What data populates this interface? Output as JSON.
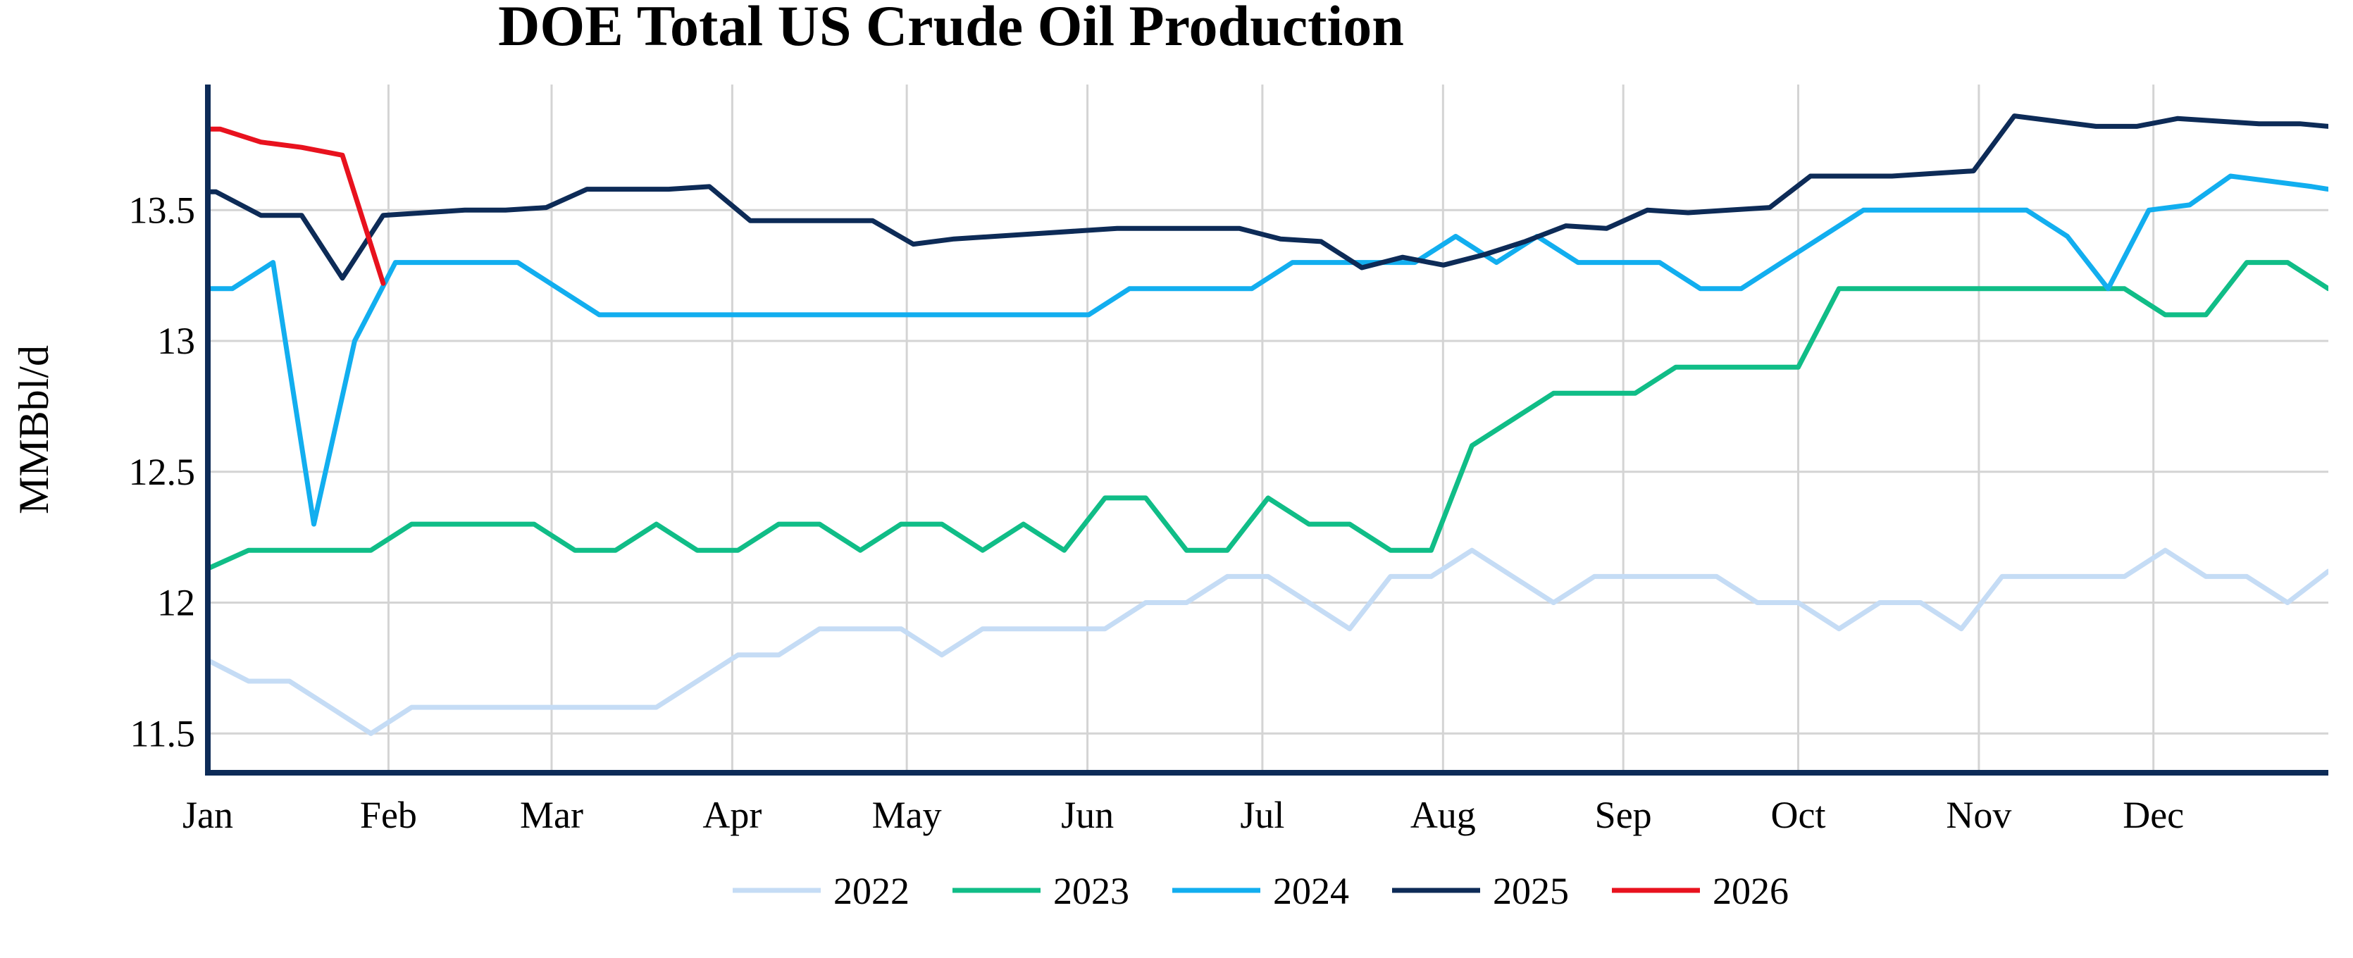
{
  "chart_data": {
    "type": "line",
    "title": "DOE Total US Crude Oil Production",
    "xlabel": "",
    "ylabel": "MMBbl/d",
    "xlim": [
      0,
      52
    ],
    "ylim": [
      11.35,
      13.98
    ],
    "yticks": [
      11.5,
      12,
      12.5,
      13,
      13.5
    ],
    "ytick_labels": [
      "11.5",
      "12",
      "12.5",
      "13",
      "13.5"
    ],
    "xticks": [
      0,
      4.43,
      8.43,
      12.86,
      17.14,
      21.57,
      25.86,
      30.29,
      34.71,
      39.0,
      43.43,
      47.71
    ],
    "xtick_labels": [
      "Jan",
      "Feb",
      "Mar",
      "Apr",
      "May",
      "Jun",
      "Jul",
      "Aug",
      "Sep",
      "Oct",
      "Nov",
      "Dec"
    ],
    "grid": true,
    "legend": "bottom",
    "series": [
      {
        "name": "2022",
        "color": "#c5dcf5",
        "values": [
          [
            0,
            11.78
          ],
          [
            1,
            11.7
          ],
          [
            2,
            11.7
          ],
          [
            3,
            11.6
          ],
          [
            4,
            11.5
          ],
          [
            5,
            11.6
          ],
          [
            6,
            11.6
          ],
          [
            7,
            11.6
          ],
          [
            8,
            11.6
          ],
          [
            9,
            11.6
          ],
          [
            10,
            11.6
          ],
          [
            11,
            11.6
          ],
          [
            12,
            11.7
          ],
          [
            13,
            11.8
          ],
          [
            14,
            11.8
          ],
          [
            15,
            11.9
          ],
          [
            16,
            11.9
          ],
          [
            17,
            11.9
          ],
          [
            18,
            11.8
          ],
          [
            19,
            11.9
          ],
          [
            20,
            11.9
          ],
          [
            21,
            11.9
          ],
          [
            22,
            11.9
          ],
          [
            23,
            12.0
          ],
          [
            24,
            12.0
          ],
          [
            25,
            12.1
          ],
          [
            26,
            12.1
          ],
          [
            27,
            12.0
          ],
          [
            28,
            11.9
          ],
          [
            29,
            12.1
          ],
          [
            30,
            12.1
          ],
          [
            31,
            12.2
          ],
          [
            32,
            12.1
          ],
          [
            33,
            12.0
          ],
          [
            34,
            12.1
          ],
          [
            35,
            12.1
          ],
          [
            36,
            12.1
          ],
          [
            37,
            12.1
          ],
          [
            38,
            12.0
          ],
          [
            39,
            12.0
          ],
          [
            40,
            11.9
          ],
          [
            41,
            12.0
          ],
          [
            42,
            12.0
          ],
          [
            43,
            11.9
          ],
          [
            44,
            12.1
          ],
          [
            45,
            12.1
          ],
          [
            46,
            12.1
          ],
          [
            47,
            12.1
          ],
          [
            48,
            12.2
          ],
          [
            49,
            12.1
          ],
          [
            50,
            12.1
          ],
          [
            51,
            12.0
          ],
          [
            52,
            12.12
          ]
        ]
      },
      {
        "name": "2023",
        "color": "#10bd87",
        "values": [
          [
            0,
            12.13
          ],
          [
            1,
            12.2
          ],
          [
            2,
            12.2
          ],
          [
            3,
            12.2
          ],
          [
            4,
            12.2
          ],
          [
            5,
            12.3
          ],
          [
            6,
            12.3
          ],
          [
            7,
            12.3
          ],
          [
            8,
            12.3
          ],
          [
            9,
            12.2
          ],
          [
            10,
            12.2
          ],
          [
            11,
            12.3
          ],
          [
            12,
            12.2
          ],
          [
            13,
            12.2
          ],
          [
            14,
            12.3
          ],
          [
            15,
            12.3
          ],
          [
            16,
            12.2
          ],
          [
            17,
            12.3
          ],
          [
            18,
            12.3
          ],
          [
            19,
            12.2
          ],
          [
            20,
            12.3
          ],
          [
            21,
            12.2
          ],
          [
            22,
            12.4
          ],
          [
            23,
            12.4
          ],
          [
            24,
            12.2
          ],
          [
            25,
            12.2
          ],
          [
            26,
            12.4
          ],
          [
            27,
            12.3
          ],
          [
            28,
            12.3
          ],
          [
            29,
            12.2
          ],
          [
            30,
            12.2
          ],
          [
            31,
            12.6
          ],
          [
            32,
            12.7
          ],
          [
            33,
            12.8
          ],
          [
            34,
            12.8
          ],
          [
            35,
            12.8
          ],
          [
            36,
            12.9
          ],
          [
            37,
            12.9
          ],
          [
            38,
            12.9
          ],
          [
            39,
            12.9
          ],
          [
            40,
            13.2
          ],
          [
            41,
            13.2
          ],
          [
            42,
            13.2
          ],
          [
            43,
            13.2
          ],
          [
            44,
            13.2
          ],
          [
            45,
            13.2
          ],
          [
            46,
            13.2
          ],
          [
            47,
            13.2
          ],
          [
            48,
            13.1
          ],
          [
            49,
            13.1
          ],
          [
            50,
            13.3
          ],
          [
            51,
            13.3
          ],
          [
            52,
            13.2
          ],
          [
            52.5,
            13.2
          ]
        ]
      },
      {
        "name": "2024",
        "color": "#12aeef",
        "values": [
          [
            0,
            13.2
          ],
          [
            0.6,
            13.2
          ],
          [
            1.6,
            13.3
          ],
          [
            2.6,
            12.3
          ],
          [
            3.6,
            13.0
          ],
          [
            4.6,
            13.3
          ],
          [
            5.6,
            13.3
          ],
          [
            6.6,
            13.3
          ],
          [
            7.6,
            13.3
          ],
          [
            8.6,
            13.2
          ],
          [
            9.6,
            13.1
          ],
          [
            10.6,
            13.1
          ],
          [
            11.6,
            13.1
          ],
          [
            12.6,
            13.1
          ],
          [
            13.6,
            13.1
          ],
          [
            14.6,
            13.1
          ],
          [
            15.6,
            13.1
          ],
          [
            16.6,
            13.1
          ],
          [
            17.6,
            13.1
          ],
          [
            18.6,
            13.1
          ],
          [
            19.6,
            13.1
          ],
          [
            20.6,
            13.1
          ],
          [
            21.6,
            13.1
          ],
          [
            22.6,
            13.2
          ],
          [
            23.6,
            13.2
          ],
          [
            24.6,
            13.2
          ],
          [
            25.6,
            13.2
          ],
          [
            26.6,
            13.3
          ],
          [
            27.6,
            13.3
          ],
          [
            28.6,
            13.3
          ],
          [
            29.6,
            13.3
          ],
          [
            30.6,
            13.4
          ],
          [
            31.6,
            13.3
          ],
          [
            32.6,
            13.4
          ],
          [
            33.6,
            13.3
          ],
          [
            34.6,
            13.3
          ],
          [
            35.6,
            13.3
          ],
          [
            36.6,
            13.2
          ],
          [
            37.6,
            13.2
          ],
          [
            38.6,
            13.3
          ],
          [
            39.6,
            13.4
          ],
          [
            40.6,
            13.5
          ],
          [
            41.6,
            13.5
          ],
          [
            42.6,
            13.5
          ],
          [
            43.6,
            13.5
          ],
          [
            44.6,
            13.5
          ],
          [
            45.6,
            13.4
          ],
          [
            46.6,
            13.2
          ],
          [
            47.6,
            13.5
          ],
          [
            48.6,
            13.52
          ],
          [
            49.6,
            13.63
          ],
          [
            50.6,
            13.61
          ],
          [
            51.6,
            13.59
          ],
          [
            52.6,
            13.58
          ]
        ]
      },
      {
        "name": "2025",
        "color": "#0d2b57",
        "values": [
          [
            0,
            13.57
          ],
          [
            0.2,
            13.57
          ],
          [
            1.3,
            13.48
          ],
          [
            2.3,
            13.48
          ],
          [
            3.3,
            13.24
          ],
          [
            4.3,
            13.48
          ],
          [
            5.3,
            13.49
          ],
          [
            6.3,
            13.5
          ],
          [
            7.3,
            13.5
          ],
          [
            8.3,
            13.51
          ],
          [
            9.3,
            13.58
          ],
          [
            10.3,
            13.58
          ],
          [
            11.3,
            13.58
          ],
          [
            12.3,
            13.59
          ],
          [
            13.3,
            13.46
          ],
          [
            14.3,
            13.46
          ],
          [
            15.3,
            13.46
          ],
          [
            16.3,
            13.46
          ],
          [
            17.3,
            13.37
          ],
          [
            18.3,
            13.39
          ],
          [
            19.3,
            13.4
          ],
          [
            20.3,
            13.41
          ],
          [
            21.3,
            13.42
          ],
          [
            22.3,
            13.43
          ],
          [
            23.3,
            13.43
          ],
          [
            24.3,
            13.43
          ],
          [
            25.3,
            13.43
          ],
          [
            26.3,
            13.39
          ],
          [
            27.3,
            13.38
          ],
          [
            28.3,
            13.28
          ],
          [
            29.3,
            13.32
          ],
          [
            30.3,
            13.29
          ],
          [
            31.3,
            13.33
          ],
          [
            32.3,
            13.38
          ],
          [
            33.3,
            13.44
          ],
          [
            34.3,
            13.43
          ],
          [
            35.3,
            13.5
          ],
          [
            36.3,
            13.49
          ],
          [
            37.3,
            13.5
          ],
          [
            38.3,
            13.51
          ],
          [
            39.3,
            13.63
          ],
          [
            40.3,
            13.63
          ],
          [
            41.3,
            13.63
          ],
          [
            42.3,
            13.64
          ],
          [
            43.3,
            13.65
          ],
          [
            44.3,
            13.86
          ],
          [
            45.3,
            13.84
          ],
          [
            46.3,
            13.82
          ],
          [
            47.3,
            13.82
          ],
          [
            48.3,
            13.85
          ],
          [
            49.3,
            13.84
          ],
          [
            50.3,
            13.83
          ],
          [
            51.3,
            13.83
          ],
          [
            52.3,
            13.82
          ]
        ]
      },
      {
        "name": "2026",
        "color": "#e8121e",
        "values": [
          [
            0,
            13.81
          ],
          [
            0.3,
            13.81
          ],
          [
            1.3,
            13.76
          ],
          [
            2.3,
            13.74
          ],
          [
            3.3,
            13.71
          ],
          [
            4.3,
            13.22
          ]
        ]
      }
    ]
  }
}
